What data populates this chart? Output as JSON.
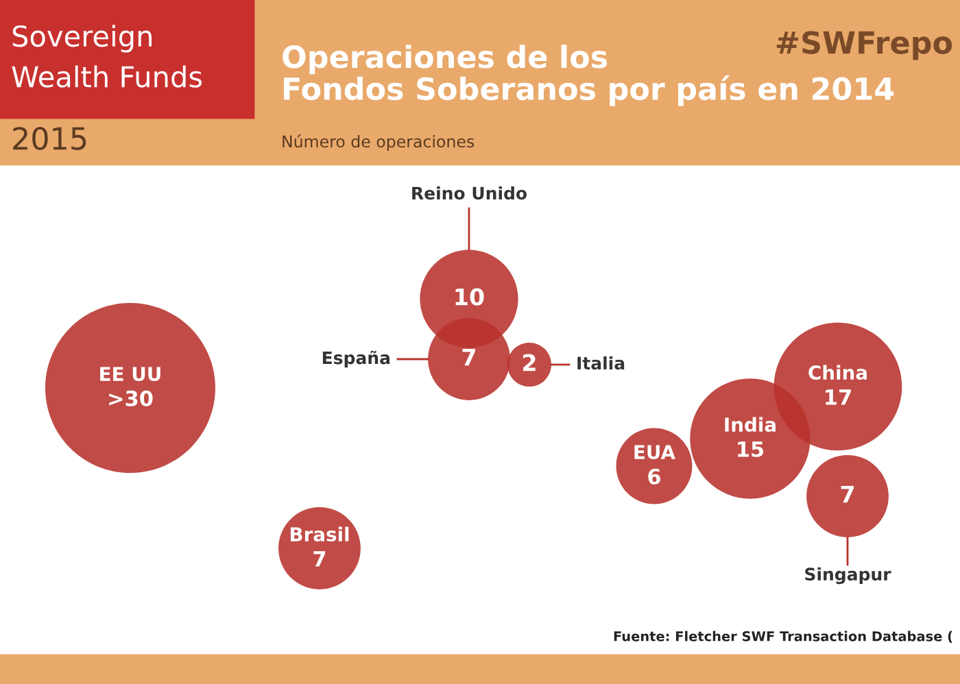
{
  "chart_data": {
    "type": "other",
    "title": "Operaciones de los\nFondos Soberanos por país en 2014",
    "subtitle": "Número de operaciones",
    "categories": [
      "Reino Unido",
      "España",
      "Italia",
      "EE UU",
      "Brasil",
      "EUA",
      "India",
      "China",
      "Singapur"
    ],
    "values": [
      10,
      7,
      2,
      30,
      7,
      6,
      15,
      17,
      7
    ],
    "value_labels": [
      "10",
      "7",
      "2",
      ">30",
      "7",
      "6",
      "15",
      "17",
      "7"
    ],
    "color": "#b8322c",
    "annotations": [
      "Sovereign\nWealth Funds",
      "2015",
      "#SWFrepo",
      "Fuente: Fletcher SWF Transaction Database ("
    ]
  }
}
